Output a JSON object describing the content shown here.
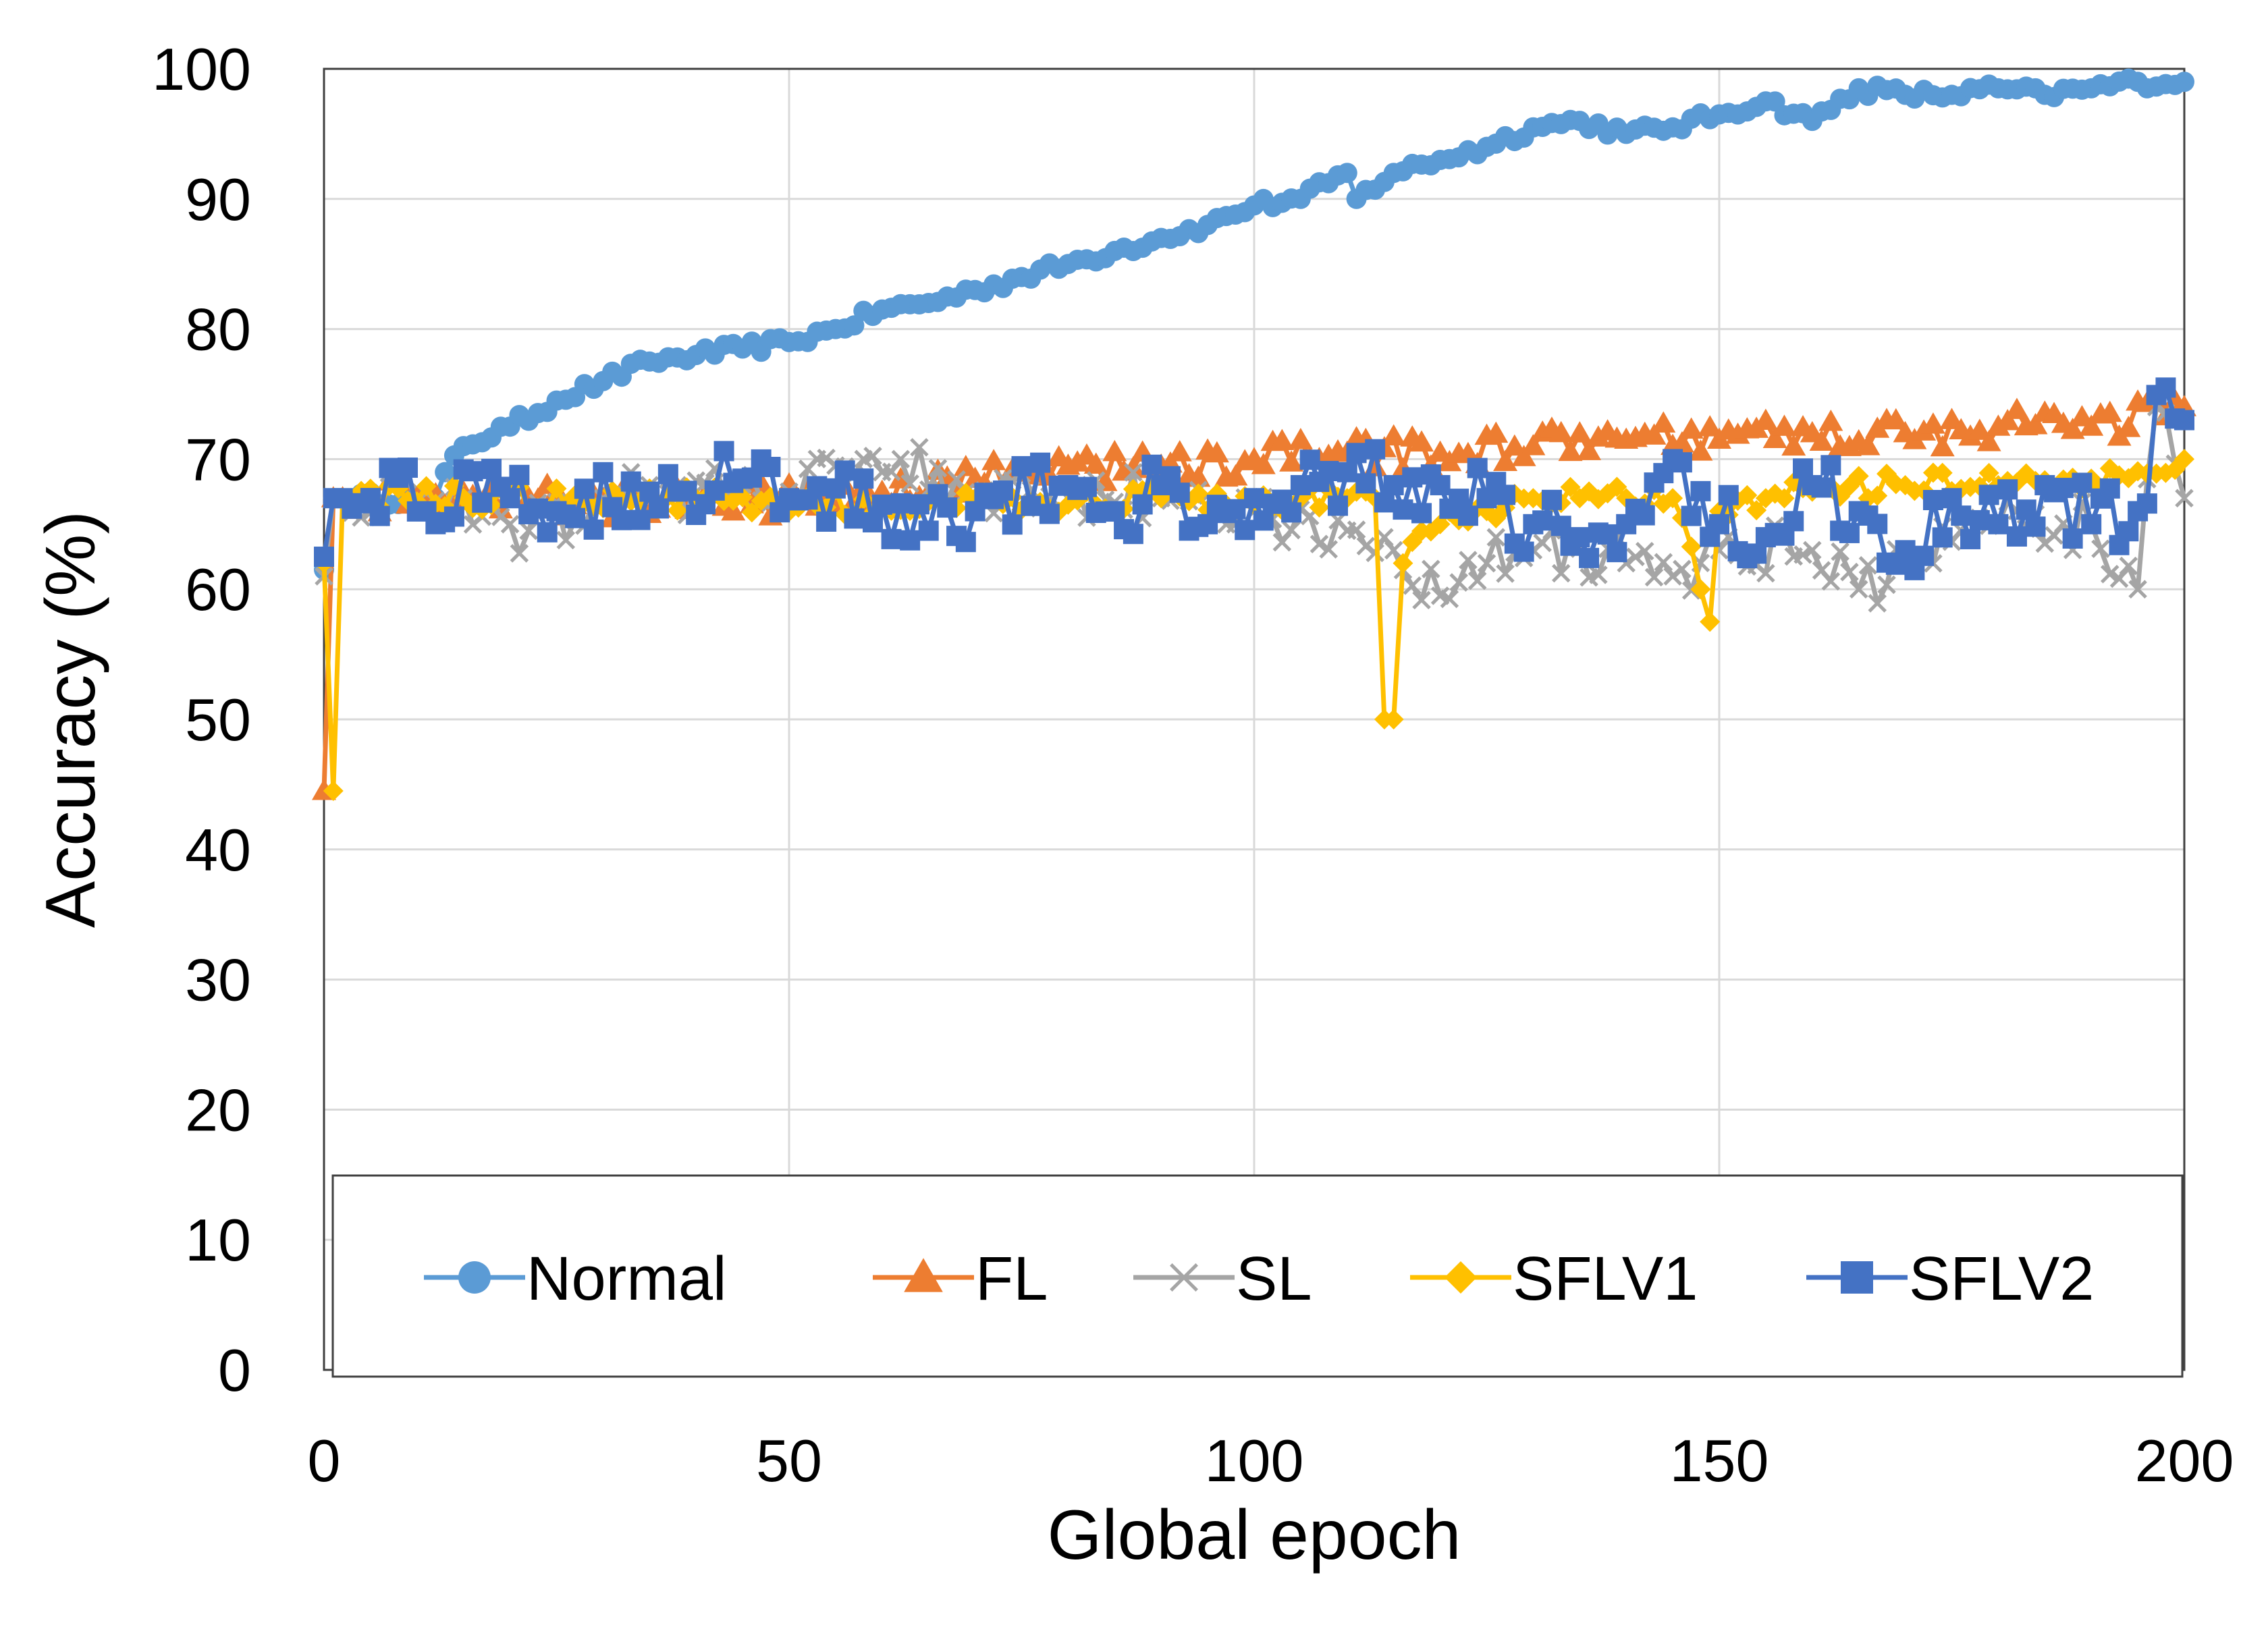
{
  "chart_data": {
    "type": "line",
    "title": "",
    "xlabel": "Global epoch",
    "ylabel": "Accuracy (%)",
    "xlim": [
      0,
      200
    ],
    "ylim": [
      0,
      100
    ],
    "xticks": [
      0,
      50,
      100,
      150,
      200
    ],
    "yticks": [
      0,
      10,
      20,
      30,
      40,
      50,
      60,
      70,
      80,
      90,
      100
    ],
    "grid": true,
    "legend_position": "bottom-inside",
    "series": [
      {
        "name": "Normal",
        "color": "#5B9BD5",
        "marker": "circle",
        "keypoints": [
          [
            0,
            61.5
          ],
          [
            1,
            67
          ],
          [
            12,
            67
          ],
          [
            13,
            69
          ],
          [
            15,
            71
          ],
          [
            20,
            72.5
          ],
          [
            25,
            74.5
          ],
          [
            30,
            76
          ],
          [
            35,
            77.5
          ],
          [
            40,
            78
          ],
          [
            45,
            78.5
          ],
          [
            50,
            79
          ],
          [
            55,
            80
          ],
          [
            60,
            81.5
          ],
          [
            65,
            82
          ],
          [
            70,
            83
          ],
          [
            75,
            84
          ],
          [
            80,
            85
          ],
          [
            85,
            86
          ],
          [
            90,
            87
          ],
          [
            95,
            88
          ],
          [
            100,
            89.5
          ],
          [
            105,
            90
          ],
          [
            110,
            92
          ],
          [
            111,
            90
          ],
          [
            115,
            92
          ],
          [
            120,
            93
          ],
          [
            125,
            94
          ],
          [
            130,
            95.5
          ],
          [
            135,
            96
          ],
          [
            140,
            95
          ],
          [
            145,
            95.5
          ],
          [
            150,
            96.5
          ],
          [
            155,
            97.5
          ],
          [
            160,
            96
          ],
          [
            165,
            98.5
          ],
          [
            170,
            98
          ],
          [
            175,
            98
          ],
          [
            180,
            98.5
          ],
          [
            185,
            98
          ],
          [
            190,
            98.5
          ],
          [
            195,
            99
          ],
          [
            200,
            99
          ]
        ],
        "noise": 0.5
      },
      {
        "name": "FL",
        "color": "#ED7D31",
        "marker": "triangle",
        "keypoints": [
          [
            0,
            44.5
          ],
          [
            1,
            67
          ],
          [
            20,
            67
          ],
          [
            40,
            66.5
          ],
          [
            60,
            67.5
          ],
          [
            70,
            68.5
          ],
          [
            80,
            69.5
          ],
          [
            90,
            69.5
          ],
          [
            100,
            70
          ],
          [
            110,
            70.5
          ],
          [
            120,
            70.5
          ],
          [
            130,
            71
          ],
          [
            140,
            71.5
          ],
          [
            150,
            71.5
          ],
          [
            160,
            72
          ],
          [
            170,
            72
          ],
          [
            180,
            72.5
          ],
          [
            190,
            72.5
          ],
          [
            200,
            74
          ]
        ],
        "noise": 1.3
      },
      {
        "name": "SL",
        "color": "#A5A5A5",
        "marker": "x",
        "keypoints": [
          [
            0,
            61
          ],
          [
            1,
            67
          ],
          [
            15,
            67
          ],
          [
            20,
            65
          ],
          [
            22,
            64.5
          ],
          [
            30,
            67
          ],
          [
            35,
            68
          ],
          [
            45,
            67
          ],
          [
            50,
            67.5
          ],
          [
            55,
            69.5
          ],
          [
            60,
            69
          ],
          [
            62,
            70
          ],
          [
            70,
            67
          ],
          [
            80,
            67
          ],
          [
            90,
            67
          ],
          [
            100,
            66
          ],
          [
            110,
            64.5
          ],
          [
            115,
            63
          ],
          [
            120,
            59.5
          ],
          [
            125,
            62
          ],
          [
            130,
            63
          ],
          [
            140,
            62
          ],
          [
            145,
            61
          ],
          [
            150,
            63
          ],
          [
            160,
            63
          ],
          [
            165,
            60
          ],
          [
            170,
            62
          ],
          [
            180,
            65
          ],
          [
            190,
            65
          ],
          [
            195,
            60
          ],
          [
            197,
            74
          ],
          [
            200,
            67
          ]
        ],
        "noise": 2.0
      },
      {
        "name": "SFLV1",
        "color": "#FFC000",
        "marker": "diamond",
        "keypoints": [
          [
            0,
            62
          ],
          [
            1,
            44.5
          ],
          [
            2,
            67
          ],
          [
            20,
            67
          ],
          [
            40,
            67
          ],
          [
            60,
            66.5
          ],
          [
            70,
            67
          ],
          [
            80,
            66.5
          ],
          [
            90,
            67
          ],
          [
            100,
            66.5
          ],
          [
            110,
            67
          ],
          [
            113,
            67
          ],
          [
            114,
            50
          ],
          [
            115,
            50
          ],
          [
            116,
            62
          ],
          [
            120,
            65
          ],
          [
            125,
            66
          ],
          [
            130,
            67
          ],
          [
            135,
            67
          ],
          [
            140,
            67
          ],
          [
            145,
            67
          ],
          [
            148,
            60
          ],
          [
            149,
            57.5
          ],
          [
            150,
            66
          ],
          [
            155,
            67
          ],
          [
            160,
            67.5
          ],
          [
            170,
            68
          ],
          [
            180,
            68
          ],
          [
            190,
            68.5
          ],
          [
            200,
            70
          ]
        ],
        "noise": 1.0
      },
      {
        "name": "SFLV2",
        "color": "#4472C4",
        "marker": "square",
        "keypoints": [
          [
            0,
            62.5
          ],
          [
            1,
            67
          ],
          [
            20,
            67
          ],
          [
            25,
            66
          ],
          [
            35,
            67.5
          ],
          [
            45,
            68.5
          ],
          [
            50,
            67
          ],
          [
            60,
            66.5
          ],
          [
            65,
            64.5
          ],
          [
            70,
            66
          ],
          [
            80,
            68
          ],
          [
            85,
            66
          ],
          [
            90,
            68
          ],
          [
            95,
            65
          ],
          [
            100,
            67
          ],
          [
            105,
            68
          ],
          [
            110,
            69
          ],
          [
            115,
            68
          ],
          [
            120,
            68
          ],
          [
            125,
            67
          ],
          [
            130,
            65
          ],
          [
            135,
            64
          ],
          [
            140,
            65
          ],
          [
            145,
            70
          ],
          [
            150,
            65
          ],
          [
            155,
            64
          ],
          [
            160,
            68
          ],
          [
            165,
            66
          ],
          [
            170,
            63
          ],
          [
            175,
            67
          ],
          [
            180,
            65
          ],
          [
            185,
            68
          ],
          [
            190,
            65
          ],
          [
            195,
            66
          ],
          [
            198,
            75.5
          ],
          [
            200,
            73
          ]
        ],
        "noise": 2.6
      }
    ]
  }
}
